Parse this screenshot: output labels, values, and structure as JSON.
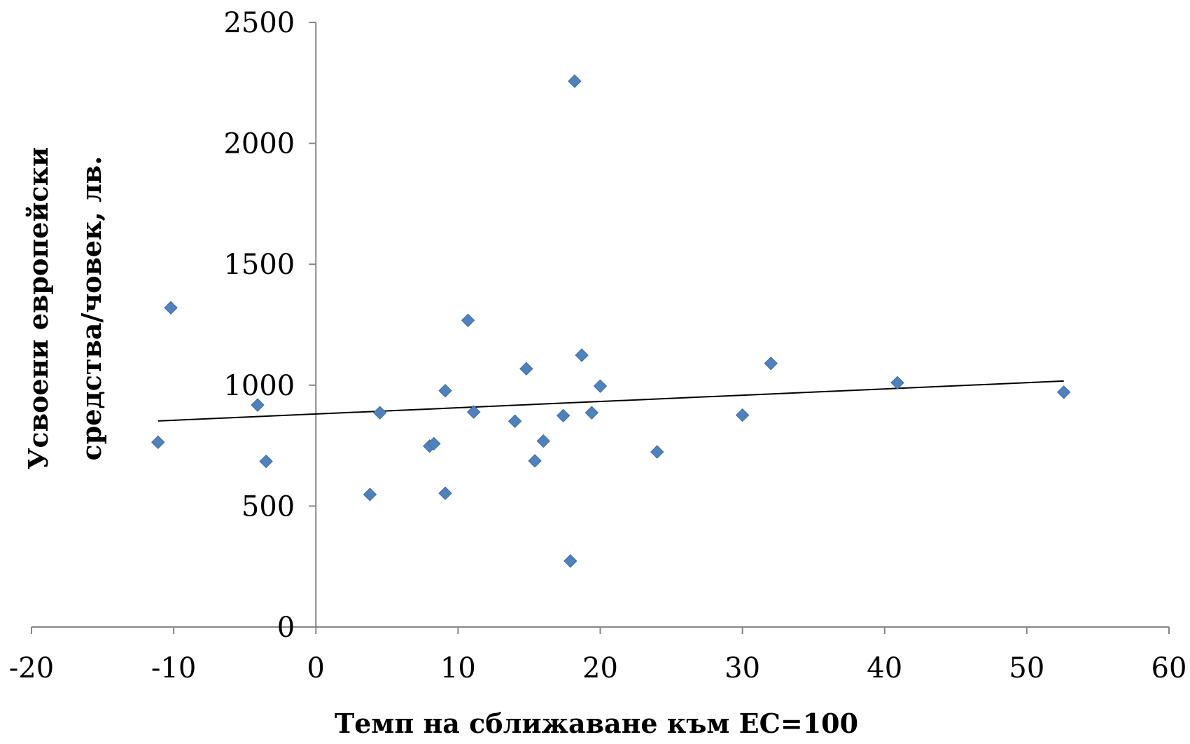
{
  "chart_data": {
    "type": "scatter",
    "title": "",
    "xlabel": "Темп на сближаване към ЕС=100",
    "ylabel_lines": [
      "Усвоени европейски",
      "средства/човек, лв."
    ],
    "xlim": [
      -20,
      60
    ],
    "ylim": [
      0,
      2500
    ],
    "x_ticks": [
      -20,
      -10,
      0,
      10,
      20,
      30,
      40,
      50,
      60
    ],
    "y_ticks": [
      0,
      500,
      1000,
      1500,
      2000,
      2500
    ],
    "grid": false,
    "legend": "none",
    "marker": "diamond",
    "marker_color": "#4F81BD",
    "series": [
      {
        "points": [
          [
            -11.1,
            764
          ],
          [
            -10.2,
            1320
          ],
          [
            -4.1,
            918
          ],
          [
            -3.5,
            685
          ],
          [
            3.8,
            548
          ],
          [
            4.5,
            886
          ],
          [
            8.0,
            748
          ],
          [
            8.3,
            758
          ],
          [
            9.1,
            977
          ],
          [
            9.1,
            553
          ],
          [
            10.7,
            1268
          ],
          [
            11.1,
            889
          ],
          [
            14.0,
            851
          ],
          [
            14.8,
            1068
          ],
          [
            15.4,
            687
          ],
          [
            16.0,
            769
          ],
          [
            17.4,
            874
          ],
          [
            17.9,
            273
          ],
          [
            18.2,
            2257
          ],
          [
            18.7,
            1124
          ],
          [
            19.4,
            886
          ],
          [
            20.0,
            996
          ],
          [
            24.0,
            724
          ],
          [
            30.0,
            876
          ],
          [
            32.0,
            1090
          ],
          [
            40.9,
            1010
          ],
          [
            52.6,
            971
          ]
        ]
      }
    ],
    "trendline": {
      "type": "linear",
      "x": [
        -11.1,
        52.6
      ],
      "y": [
        852,
        1017
      ],
      "color": "#000000"
    }
  }
}
